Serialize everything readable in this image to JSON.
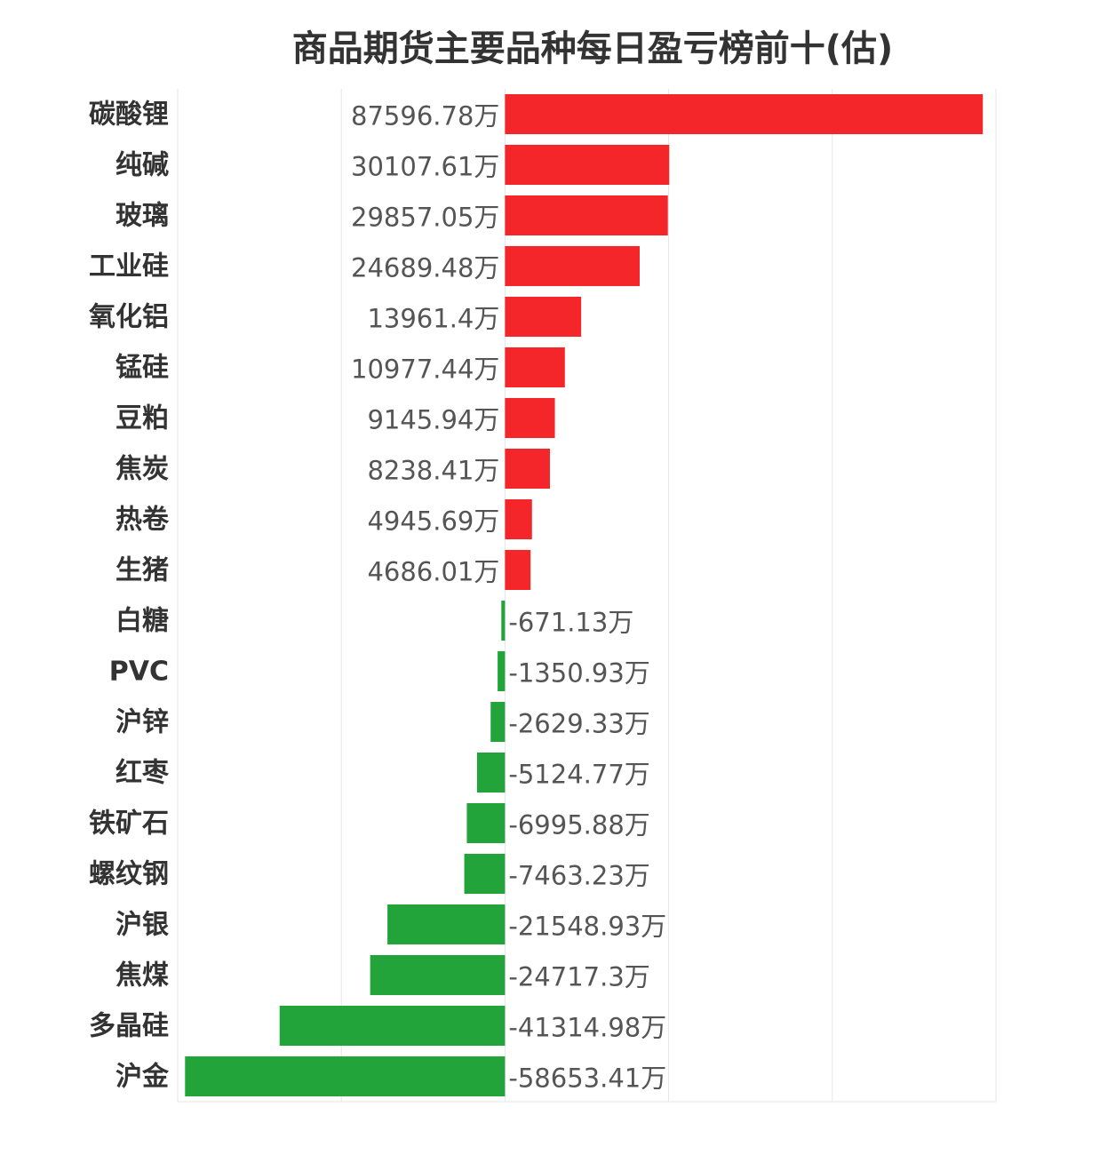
{
  "chart_data": {
    "type": "bar",
    "orientation": "horizontal",
    "title": "商品期货主要品种每日盈亏榜前十(估)",
    "unit_suffix": "万",
    "categories": [
      "碳酸锂",
      "纯碱",
      "玻璃",
      "工业硅",
      "氧化铝",
      "锰硅",
      "豆粕",
      "焦炭",
      "热卷",
      "生猪",
      "白糖",
      "PVC",
      "沪锌",
      "红枣",
      "铁矿石",
      "螺纹钢",
      "沪银",
      "焦煤",
      "多晶硅",
      "沪金"
    ],
    "values": [
      87596.78,
      30107.61,
      29857.05,
      24689.48,
      13961.4,
      10977.44,
      9145.94,
      8238.41,
      4945.69,
      4686.01,
      -671.13,
      -1350.93,
      -2629.33,
      -5124.77,
      -6995.88,
      -7463.23,
      -21548.93,
      -24717.3,
      -41314.98,
      -58653.41
    ],
    "value_labels": [
      "87596.78万",
      "30107.61万",
      "29857.05万",
      "24689.48万",
      "13961.4万",
      "10977.44万",
      "9145.94万",
      "8238.41万",
      "4945.69万",
      "4686.01万",
      "-671.13万",
      "-1350.93万",
      "-2629.33万",
      "-5124.77万",
      "-6995.88万",
      "-7463.23万",
      "-21548.93万",
      "-24717.3万",
      "-41314.98万",
      "-58653.41万"
    ],
    "xlim": [
      -60000,
      90000
    ],
    "grid": true,
    "legend": "none",
    "colors": {
      "positive": "#f5262a",
      "negative": "#23a43b",
      "grid": "#e6e6e6"
    }
  }
}
